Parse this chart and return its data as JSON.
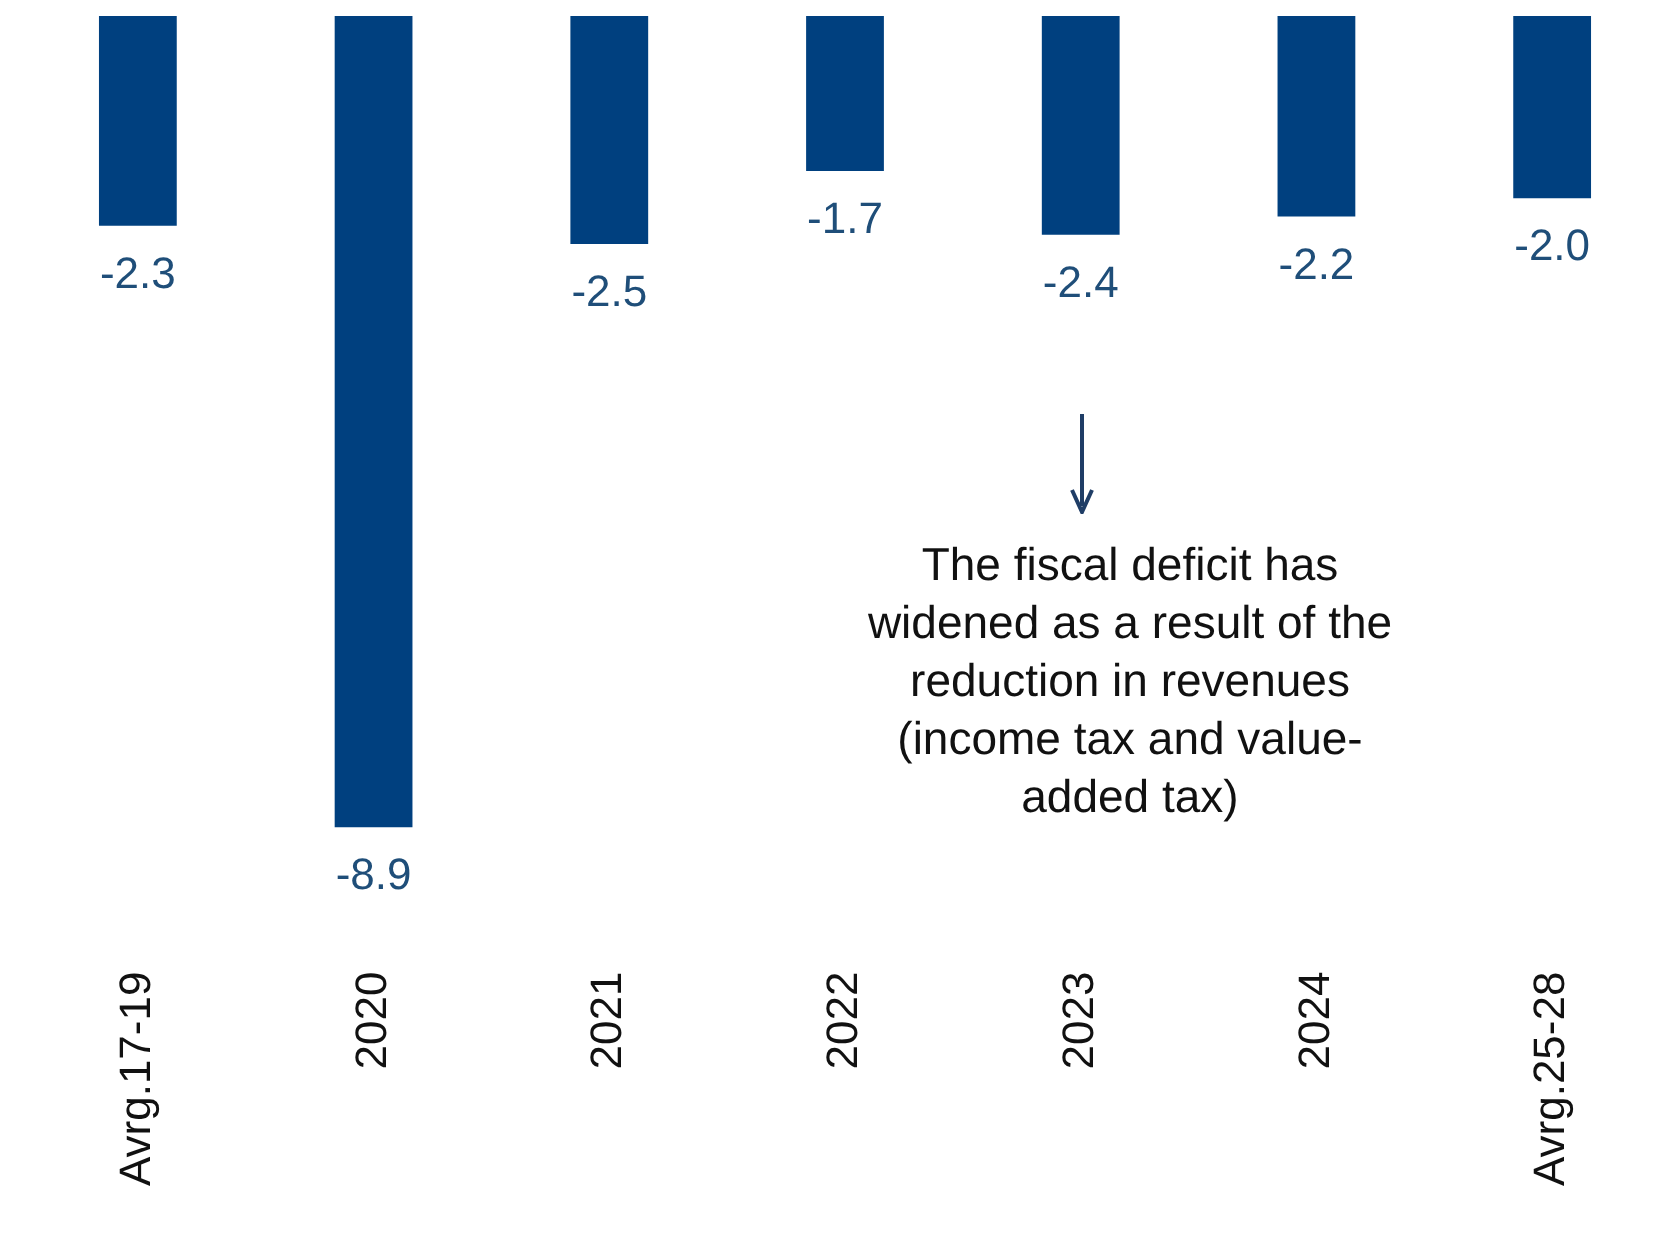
{
  "chart_data": {
    "type": "bar",
    "categories": [
      "Avrg.17-19",
      "2020",
      "2021",
      "2022",
      "2023",
      "2024",
      "Avrg.25-28"
    ],
    "values": [
      -2.3,
      -8.9,
      -2.5,
      -1.7,
      -2.4,
      -2.2,
      -2.0
    ],
    "color": "#00407f",
    "value_labels": [
      "-2.3",
      "-8.9",
      "-2.5",
      "-1.7",
      "-2.4",
      "-2.2",
      "-2.0"
    ],
    "grid": false,
    "legend": false,
    "tick_labels": "x",
    "annotations": [
      "The fiscal deficit has widened as a result of the reduction in revenues (income tax and value-added tax)"
    ]
  }
}
